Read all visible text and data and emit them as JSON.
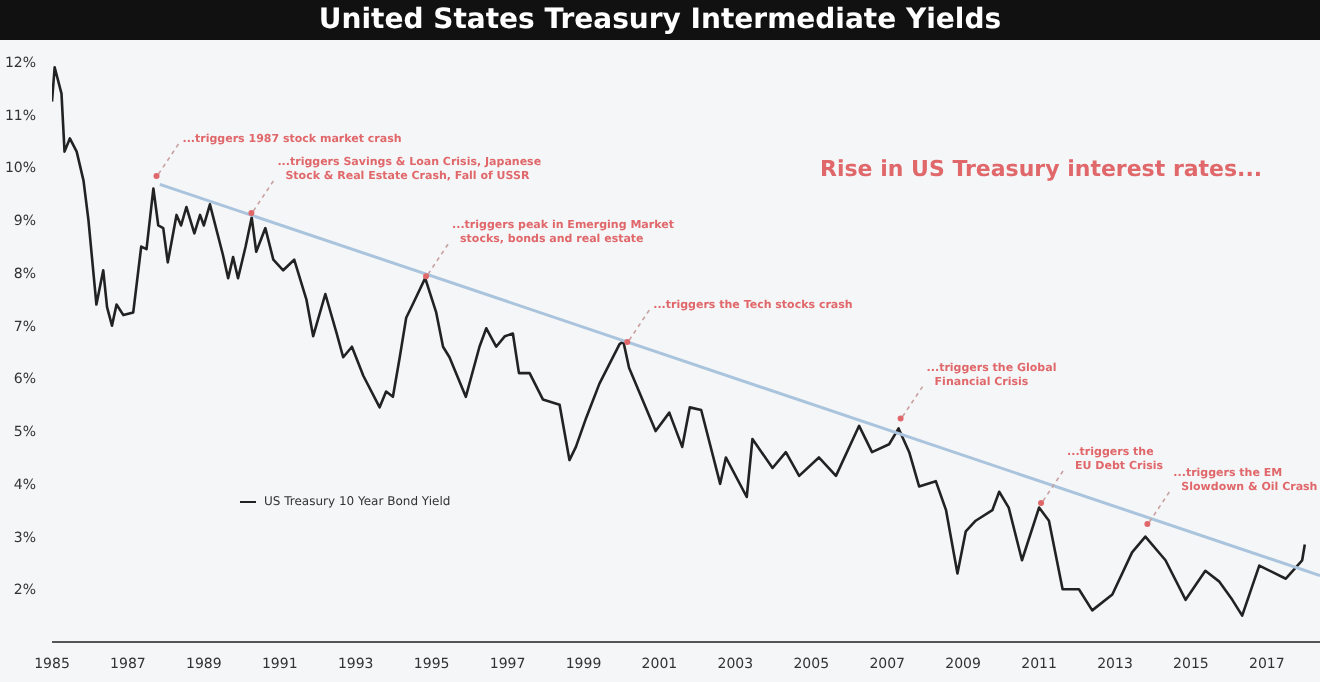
{
  "chart_data": {
    "type": "line",
    "title": "United States Treasury Intermediate Yields",
    "xlim": [
      1985,
      2018.4
    ],
    "xticks": [
      1985,
      1987,
      1989,
      1991,
      1993,
      1995,
      1997,
      1999,
      2001,
      2003,
      2005,
      2007,
      2009,
      2011,
      2013,
      2015,
      2017
    ],
    "ylim": [
      1,
      12
    ],
    "yticks": [
      {
        "value": 2,
        "label": "2%"
      },
      {
        "value": 3,
        "label": "3%"
      },
      {
        "value": 4,
        "label": "4%"
      },
      {
        "value": 5,
        "label": "5%"
      },
      {
        "value": 6,
        "label": "6%"
      },
      {
        "value": 7,
        "label": "7%"
      },
      {
        "value": 8,
        "label": "8%"
      },
      {
        "value": 9,
        "label": "9%"
      },
      {
        "value": 10,
        "label": "10%"
      },
      {
        "value": 11,
        "label": "11%"
      },
      {
        "value": 12,
        "label": "12%"
      }
    ],
    "grid": false,
    "legend": "left",
    "marker": "none",
    "line_style": "solid",
    "series": [
      {
        "name": "US Treasury 10 Year Bond Yield",
        "color": "#222222",
        "x": [
          1985.0,
          1985.07,
          1985.25,
          1985.33,
          1985.47,
          1985.65,
          1985.83,
          1985.96,
          1986.17,
          1986.35,
          1986.45,
          1986.58,
          1986.7,
          1986.88,
          1987.14,
          1987.35,
          1987.49,
          1987.67,
          1987.8,
          1987.93,
          1988.05,
          1988.28,
          1988.4,
          1988.54,
          1988.75,
          1988.9,
          1989.0,
          1989.16,
          1989.5,
          1989.64,
          1989.77,
          1989.9,
          1990.1,
          1990.26,
          1990.38,
          1990.62,
          1990.83,
          1991.09,
          1991.38,
          1991.7,
          1991.88,
          1992.2,
          1992.5,
          1992.67,
          1992.9,
          1993.2,
          1993.63,
          1993.8,
          1993.98,
          1994.16,
          1994.33,
          1994.5,
          1994.83,
          1995.12,
          1995.3,
          1995.47,
          1995.9,
          1996.26,
          1996.44,
          1996.7,
          1996.93,
          1997.14,
          1997.3,
          1997.58,
          1997.93,
          1998.37,
          1998.63,
          1998.8,
          1999.07,
          1999.42,
          1999.95,
          2000.05,
          2000.2,
          2000.9,
          2001.26,
          2001.6,
          2001.8,
          2002.1,
          2002.6,
          2002.75,
          2003.3,
          2003.45,
          2003.98,
          2004.33,
          2004.68,
          2005.2,
          2005.65,
          2006.26,
          2006.6,
          2007.05,
          2007.3,
          2007.58,
          2007.84,
          2008.28,
          2008.55,
          2008.85,
          2009.07,
          2009.33,
          2009.77,
          2009.95,
          2010.2,
          2010.55,
          2011.0,
          2011.26,
          2011.62,
          2012.05,
          2012.4,
          2012.93,
          2013.45,
          2013.8,
          2014.33,
          2014.86,
          2015.38,
          2015.74,
          2016.09,
          2016.35,
          2016.8,
          2017.5,
          2017.93,
          2018.0
        ],
        "values": [
          11.25,
          11.9,
          11.4,
          10.3,
          10.55,
          10.3,
          9.75,
          9.0,
          7.4,
          8.05,
          7.35,
          7.0,
          7.4,
          7.2,
          7.25,
          8.5,
          8.45,
          9.6,
          8.9,
          8.85,
          8.2,
          9.1,
          8.9,
          9.25,
          8.75,
          9.1,
          8.9,
          9.3,
          8.35,
          7.9,
          8.3,
          7.9,
          8.5,
          9.05,
          8.4,
          8.85,
          8.25,
          8.05,
          8.25,
          7.5,
          6.8,
          7.6,
          6.85,
          6.4,
          6.6,
          6.05,
          5.45,
          5.75,
          5.65,
          6.4,
          7.15,
          7.4,
          7.9,
          7.25,
          6.6,
          6.4,
          5.65,
          6.6,
          6.95,
          6.6,
          6.8,
          6.85,
          6.1,
          6.1,
          5.6,
          5.5,
          4.45,
          4.7,
          5.25,
          5.9,
          6.65,
          6.7,
          6.2,
          5.0,
          5.35,
          4.7,
          5.45,
          5.4,
          4.0,
          4.5,
          3.75,
          4.85,
          4.3,
          4.6,
          4.15,
          4.5,
          4.15,
          5.1,
          4.6,
          4.75,
          5.05,
          4.6,
          3.95,
          4.05,
          3.5,
          2.3,
          3.1,
          3.3,
          3.5,
          3.85,
          3.55,
          2.55,
          3.55,
          3.3,
          2.0,
          2.0,
          1.6,
          1.9,
          2.7,
          3.0,
          2.55,
          1.8,
          2.35,
          2.15,
          1.8,
          1.5,
          2.45,
          2.2,
          2.55,
          2.85
        ]
      },
      {
        "type": "line",
        "color": "#a9c4dc",
        "x": [
          1987.84,
          2018.4
        ],
        "values": [
          9.68,
          2.26
        ]
      }
    ],
    "annotations": [
      "Rise in US Treasury interest rates...",
      {
        "text": "...triggers 1987 stock market crash",
        "x": 1987.7,
        "y": 9.8
      },
      {
        "text": "...triggers Savings & Loan Crisis, Japanese\nStock & Real Estate Crash, Fall of USSR",
        "x": 1990.2,
        "y": 9.1
      },
      {
        "text": "...triggers peak in Emerging Market\nstocks, bonds and real estate",
        "x": 1994.8,
        "y": 7.9
      },
      {
        "text": "...triggers the Tech stocks crash",
        "x": 2000.1,
        "y": 6.65
      },
      {
        "text": "...triggers the Global\nFinancial Crisis",
        "x": 2007.3,
        "y": 5.2
      },
      {
        "text": "...triggers the\nEU Debt Crisis",
        "x": 2011.0,
        "y": 3.6
      },
      {
        "text": "...triggers the EM\nSlowdown & Oil Crash",
        "x": 2013.8,
        "y": 3.2
      }
    ]
  }
}
